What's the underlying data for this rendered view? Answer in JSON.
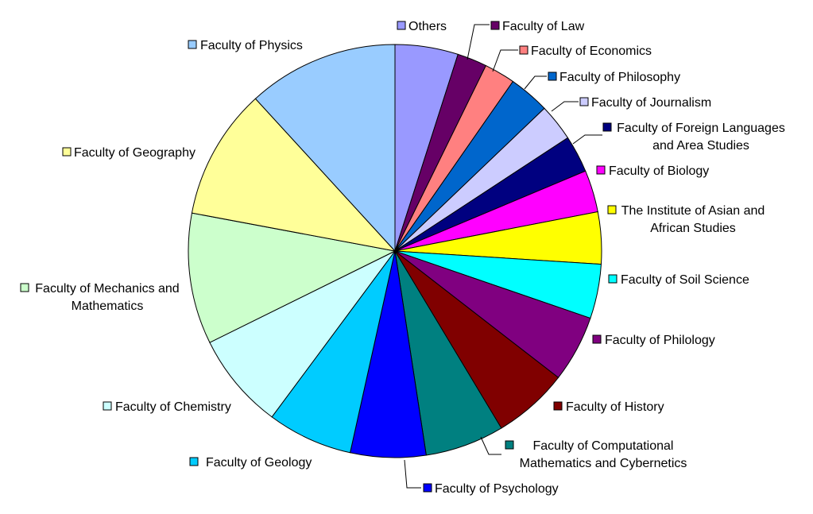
{
  "chart_data": {
    "type": "pie",
    "title": "",
    "start": "top",
    "direction": "clockwise",
    "slices": [
      {
        "label": "Others",
        "value": 5.1,
        "color": "#9999ff"
      },
      {
        "label": "Faculty of Law",
        "value": 2.4,
        "color": "#660066"
      },
      {
        "label": "Faculty of Economics",
        "value": 2.5,
        "color": "#ff8080"
      },
      {
        "label": "Faculty of Philosophy",
        "value": 3.3,
        "color": "#0066cc"
      },
      {
        "label": "Faculty of Journalism",
        "value": 3.0,
        "color": "#ccccff"
      },
      {
        "label": "Faculty of Foreign Languages and Area Studies",
        "value": 3.0,
        "color": "#000080"
      },
      {
        "label": "Faculty of Biology",
        "value": 3.4,
        "color": "#ff00ff"
      },
      {
        "label": "The Institute of Asian and African Studies",
        "value": 4.2,
        "color": "#ffff00"
      },
      {
        "label": "Faculty of Soil Science",
        "value": 4.4,
        "color": "#00ffff"
      },
      {
        "label": "Faculty of Philology",
        "value": 5.4,
        "color": "#800080"
      },
      {
        "label": "Faculty of History",
        "value": 6.1,
        "color": "#800000"
      },
      {
        "label": "Faculty of Computational Mathematics and Cybernetics",
        "value": 6.4,
        "color": "#008080"
      },
      {
        "label": "Faculty of Psychology",
        "value": 6.1,
        "color": "#0000ff"
      },
      {
        "label": "Faculty of Geology",
        "value": 6.9,
        "color": "#00ccff"
      },
      {
        "label": "Faculty of Chemistry",
        "value": 7.8,
        "color": "#ccffff"
      },
      {
        "label": "Faculty of Mechanics and Mathematics",
        "value": 10.6,
        "color": "#ccffcc"
      },
      {
        "label": "Faculty of Geography",
        "value": 10.6,
        "color": "#ffff99"
      },
      {
        "label": "Faculty of Physics",
        "value": 12.2,
        "color": "#99ccff"
      }
    ]
  }
}
